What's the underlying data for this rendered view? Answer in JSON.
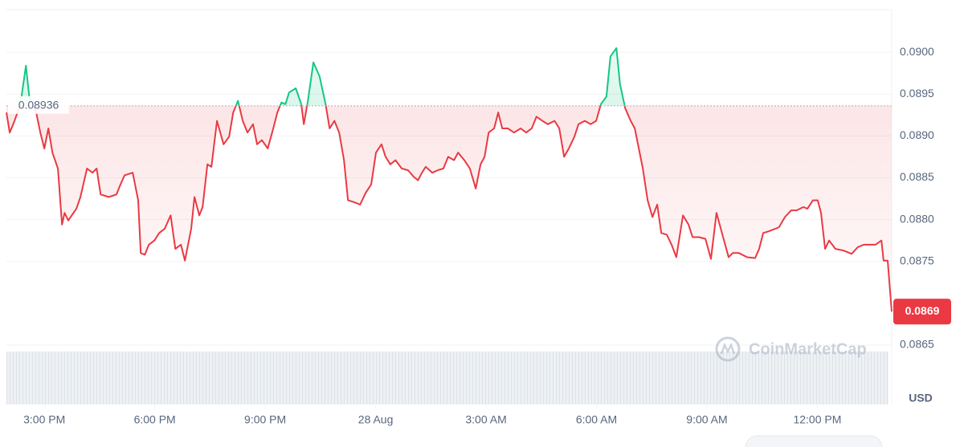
{
  "chart_data": {
    "type": "line",
    "baseline": 0.08936,
    "axis_unit": "USD",
    "watermark": "CoinMarketCap",
    "xlim": [
      13.97,
      38.02
    ],
    "xticks": [
      {
        "value": 15,
        "label": "3:00 PM"
      },
      {
        "value": 18,
        "label": "6:00 PM"
      },
      {
        "value": 21,
        "label": "9:00 PM"
      },
      {
        "value": 24,
        "label": "28 Aug"
      },
      {
        "value": 27,
        "label": "3:00 AM"
      },
      {
        "value": 30,
        "label": "6:00 AM"
      },
      {
        "value": 33,
        "label": "9:00 AM"
      },
      {
        "value": 36,
        "label": "12:00 PM"
      }
    ],
    "ylim": [
      0.08578,
      0.09051
    ],
    "yticks": [
      {
        "value": 0.09,
        "label": "0.0900"
      },
      0.0895,
      {
        "value": 0.089,
        "label": "0.0890"
      },
      0.0885,
      {
        "value": 0.088,
        "label": "0.0880"
      },
      0.0875,
      0.0865
    ],
    "grid": true,
    "up_color": "#16c784",
    "down_color": "#ea3943",
    "series": [
      {
        "name": "Price",
        "x": [
          13.97,
          14.06,
          14.19,
          14.35,
          14.5,
          14.59,
          14.78,
          14.89,
          15.0,
          15.11,
          15.22,
          15.37,
          15.48,
          15.55,
          15.65,
          15.87,
          15.98,
          16.16,
          16.31,
          16.42,
          16.53,
          16.75,
          16.96,
          17.07,
          17.18,
          17.4,
          17.55,
          17.62,
          17.73,
          17.84,
          17.99,
          18.12,
          18.27,
          18.43,
          18.56,
          18.71,
          18.82,
          18.99,
          19.08,
          19.21,
          19.3,
          19.43,
          19.54,
          19.69,
          19.87,
          20.02,
          20.13,
          20.26,
          20.39,
          20.52,
          20.67,
          20.78,
          20.91,
          21.07,
          21.22,
          21.33,
          21.44,
          21.55,
          21.65,
          21.83,
          21.98,
          22.05,
          22.16,
          22.31,
          22.48,
          22.64,
          22.75,
          22.88,
          23.01,
          23.14,
          23.25,
          23.4,
          23.58,
          23.73,
          23.88,
          24.01,
          24.16,
          24.27,
          24.4,
          24.54,
          24.71,
          24.88,
          25.04,
          25.15,
          25.26,
          25.36,
          25.54,
          25.69,
          25.84,
          25.97,
          26.13,
          26.24,
          26.41,
          26.56,
          26.72,
          26.85,
          26.96,
          27.07,
          27.22,
          27.33,
          27.44,
          27.59,
          27.76,
          27.94,
          28.09,
          28.24,
          28.37,
          28.53,
          28.68,
          28.86,
          28.99,
          29.12,
          29.25,
          29.4,
          29.51,
          29.68,
          29.84,
          29.99,
          30.12,
          30.27,
          30.38,
          30.54,
          30.64,
          30.78,
          30.93,
          31.04,
          31.15,
          31.26,
          31.39,
          31.52,
          31.65,
          31.76,
          31.91,
          32.04,
          32.17,
          32.35,
          32.5,
          32.61,
          32.78,
          32.96,
          33.11,
          33.26,
          33.44,
          33.59,
          33.7,
          33.87,
          34.09,
          34.31,
          34.42,
          34.53,
          34.68,
          34.86,
          34.96,
          35.12,
          35.29,
          35.44,
          35.62,
          35.73,
          35.88,
          36.01,
          36.1,
          36.21,
          36.32,
          36.49,
          36.71,
          36.93,
          37.1,
          37.26,
          37.41,
          37.58,
          37.74,
          37.8,
          37.91,
          38.02
        ],
        "values": [
          0.08928,
          0.08904,
          0.08918,
          0.08938,
          0.08984,
          0.08947,
          0.08928,
          0.08904,
          0.08885,
          0.08909,
          0.0888,
          0.08861,
          0.08794,
          0.08808,
          0.08799,
          0.08813,
          0.08827,
          0.08861,
          0.08856,
          0.08861,
          0.0883,
          0.08827,
          0.0883,
          0.08842,
          0.08853,
          0.08856,
          0.08823,
          0.0876,
          0.08758,
          0.0877,
          0.08775,
          0.08784,
          0.08789,
          0.08805,
          0.08765,
          0.0877,
          0.08751,
          0.08789,
          0.08827,
          0.08805,
          0.08815,
          0.08866,
          0.08863,
          0.08918,
          0.0889,
          0.08899,
          0.08928,
          0.08942,
          0.08918,
          0.08904,
          0.08914,
          0.0889,
          0.08895,
          0.08885,
          0.08909,
          0.08928,
          0.0894,
          0.08938,
          0.08952,
          0.08957,
          0.08938,
          0.08914,
          0.08942,
          0.08988,
          0.08971,
          0.08938,
          0.08909,
          0.08918,
          0.08904,
          0.08871,
          0.08823,
          0.08821,
          0.08818,
          0.08832,
          0.08842,
          0.0888,
          0.0889,
          0.08875,
          0.08866,
          0.08871,
          0.08861,
          0.08859,
          0.08851,
          0.08847,
          0.08856,
          0.08863,
          0.08856,
          0.08859,
          0.08861,
          0.08875,
          0.08871,
          0.0888,
          0.08871,
          0.08861,
          0.08837,
          0.08866,
          0.08875,
          0.08904,
          0.08909,
          0.08928,
          0.08909,
          0.08909,
          0.08904,
          0.08909,
          0.08904,
          0.08909,
          0.08923,
          0.08918,
          0.08914,
          0.08918,
          0.08909,
          0.08875,
          0.08885,
          0.08899,
          0.08914,
          0.08918,
          0.08914,
          0.08918,
          0.08938,
          0.08947,
          0.08995,
          0.09005,
          0.08962,
          0.08933,
          0.08918,
          0.08909,
          0.08885,
          0.08861,
          0.08823,
          0.08803,
          0.08818,
          0.08784,
          0.08782,
          0.0877,
          0.08755,
          0.08805,
          0.08794,
          0.08779,
          0.08779,
          0.08777,
          0.08753,
          0.08808,
          0.08779,
          0.08755,
          0.0876,
          0.0876,
          0.08755,
          0.08754,
          0.08765,
          0.08784,
          0.08786,
          0.08789,
          0.08791,
          0.08803,
          0.08811,
          0.08811,
          0.08815,
          0.08813,
          0.08823,
          0.08823,
          0.08808,
          0.08765,
          0.08775,
          0.08765,
          0.08763,
          0.08759,
          0.08767,
          0.0877,
          0.0877,
          0.0877,
          0.08775,
          0.08751,
          0.08751,
          0.0869
        ]
      }
    ]
  }
}
